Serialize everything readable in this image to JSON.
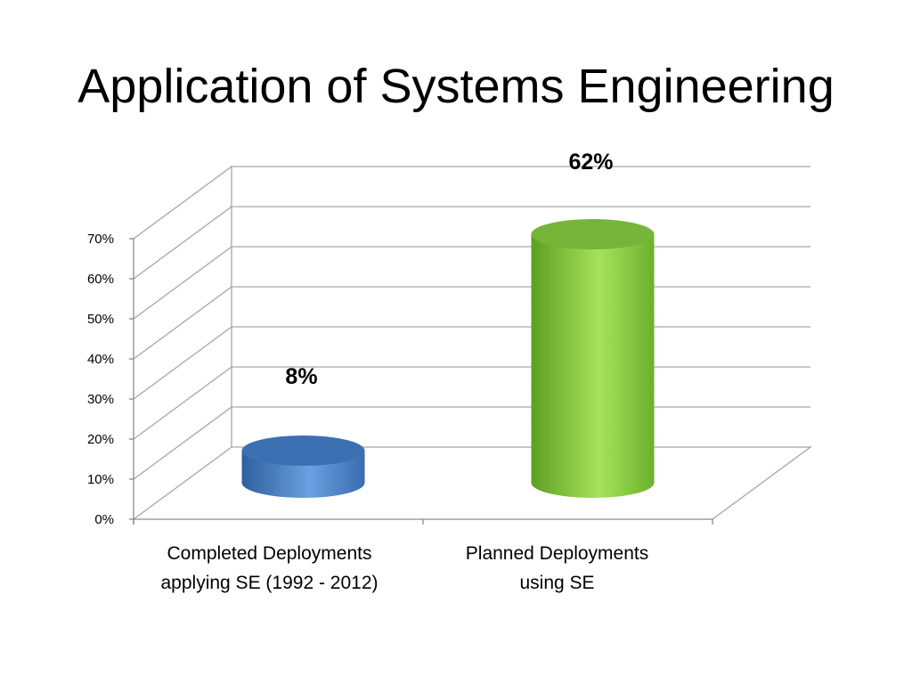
{
  "slide": {
    "title": "Application of Systems Engineering"
  },
  "chart_data": {
    "type": "bar",
    "style": "3d-cylinder",
    "title": "",
    "xlabel": "",
    "ylabel": "",
    "categories": [
      [
        "Completed Deployments",
        "applying SE (1992 - 2012)"
      ],
      [
        "Planned Deployments",
        "using SE"
      ]
    ],
    "values": [
      8,
      62
    ],
    "data_labels": [
      "8%",
      "62%"
    ],
    "colors": [
      "#4f81bd",
      "#8fd13f"
    ],
    "y_ticks": [
      0,
      10,
      20,
      30,
      40,
      50,
      60,
      70
    ],
    "y_tick_labels": [
      "0%",
      "10%",
      "20%",
      "30%",
      "40%",
      "50%",
      "60%",
      "70%"
    ],
    "ylim": [
      0,
      70
    ],
    "grid": true,
    "legend": "none"
  }
}
